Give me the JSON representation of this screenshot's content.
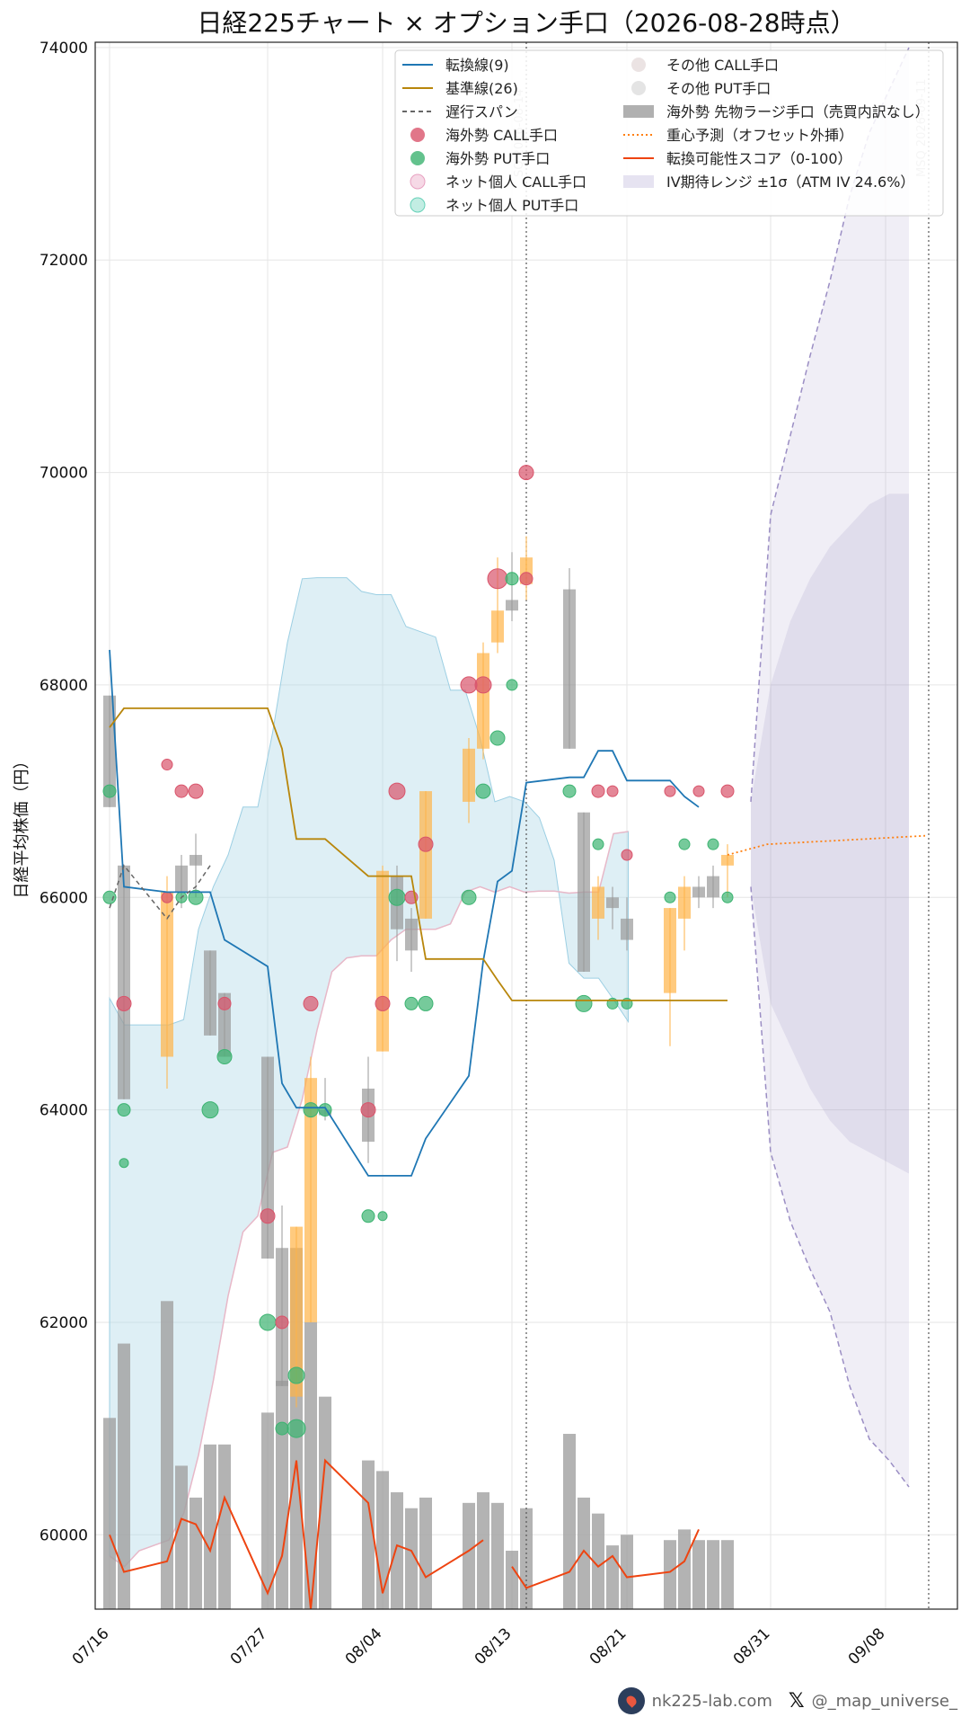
{
  "chart_data": {
    "type": "line",
    "title": "日経225チャート × オプション手口（2026-08-28時点）",
    "ylabel": "日経平均株価（円）",
    "ylim": [
      59300,
      74050
    ],
    "y_ticks": [
      60000,
      62000,
      64000,
      66000,
      68000,
      70000,
      72000,
      74000
    ],
    "x_ticks": [
      {
        "date": "2026-07-16",
        "label": "07/16"
      },
      {
        "date": "2026-07-27",
        "label": "07/27"
      },
      {
        "date": "2026-08-04",
        "label": "08/04"
      },
      {
        "date": "2026-08-13",
        "label": "08/13"
      },
      {
        "date": "2026-08-21",
        "label": "08/21"
      },
      {
        "date": "2026-08-31",
        "label": "08/31"
      },
      {
        "date": "2026-09-08",
        "label": "09/08"
      }
    ],
    "x_range": [
      "2026-07-15",
      "2026-09-13"
    ],
    "grid": true,
    "legend_position": "top",
    "vlines": [
      {
        "date": "2026-08-14",
        "label": "SQ 2026-08-14"
      },
      {
        "date": "2026-09-11",
        "label": "MSQ 2026-09-11"
      }
    ],
    "legend": {
      "tenkan": "転換線(9)",
      "kijun": "基準線(26)",
      "chikou": "遅行スパン",
      "foreign_call": "海外勢 CALL手口",
      "foreign_put": "海外勢 PUT手口",
      "retail_call": "ネット個人 CALL手口",
      "retail_put": "ネット個人 PUT手口",
      "other_call": "その他 CALL手口",
      "other_put": "その他 PUT手口",
      "futures": "海外勢 先物ラージ手口（売買内訳なし）",
      "center": "重心予測（オフセット外挿）",
      "score": "転換可能性スコア（0-100）",
      "iv": "IV期待レンジ ±1σ（ATM IV 24.6%）"
    },
    "colors": {
      "tenkan": "#1f77b4",
      "kijun": "#b8860b",
      "chikou": "#666666",
      "call": "#d9546b",
      "put": "#3cb371",
      "cloud": "#add8e6",
      "cloud_red": "#e8b8c8",
      "futures": "#a0a0a0",
      "candle": "#ffb347",
      "center": "#ff7f0e",
      "score": "#ee4411",
      "iv": "#9b8ec4"
    },
    "dates": [
      "2026-07-16",
      "2026-07-17",
      "2026-07-20",
      "2026-07-21",
      "2026-07-22",
      "2026-07-23",
      "2026-07-24",
      "2026-07-27",
      "2026-07-28",
      "2026-07-29",
      "2026-07-30",
      "2026-07-31",
      "2026-08-03",
      "2026-08-04",
      "2026-08-05",
      "2026-08-06",
      "2026-08-07",
      "2026-08-10",
      "2026-08-11",
      "2026-08-12",
      "2026-08-13",
      "2026-08-14",
      "2026-08-17",
      "2026-08-18",
      "2026-08-19",
      "2026-08-20",
      "2026-08-21",
      "2026-08-24",
      "2026-08-25",
      "2026-08-26",
      "2026-08-27",
      "2026-08-28"
    ],
    "candles": [
      [
        67900,
        67900,
        66850,
        66850
      ],
      [
        66300,
        66300,
        64100,
        64100
      ],
      [
        64500,
        66200,
        64200,
        66050
      ],
      [
        66050,
        66400,
        65900,
        66300
      ],
      [
        66300,
        66600,
        66000,
        66400
      ],
      [
        65500,
        65500,
        64700,
        64700
      ],
      [
        65100,
        65100,
        64500,
        64500
      ],
      [
        64500,
        64500,
        62600,
        62600
      ],
      [
        62700,
        63100,
        61400,
        61400
      ],
      [
        61300,
        62900,
        61200,
        62900
      ],
      [
        62000,
        64500,
        62000,
        64300
      ],
      [
        64000,
        64300,
        63900,
        63950
      ],
      [
        64200,
        64500,
        63500,
        63700
      ],
      [
        64550,
        66300,
        64550,
        66250
      ],
      [
        66200,
        66300,
        65400,
        65700
      ],
      [
        65500,
        65900,
        65300,
        65800
      ],
      [
        65800,
        67000,
        65800,
        67000
      ],
      [
        66900,
        67500,
        66700,
        67400
      ],
      [
        67400,
        68400,
        67300,
        68300
      ],
      [
        68400,
        69200,
        68300,
        68700
      ],
      [
        68700,
        69250,
        68600,
        68800
      ],
      [
        69200,
        69400,
        68800,
        68950
      ],
      [
        68900,
        69100,
        67400,
        67400
      ],
      [
        66800,
        66800,
        65300,
        65300
      ],
      [
        65800,
        66200,
        65600,
        66100
      ],
      [
        65900,
        66100,
        65700,
        66000
      ],
      [
        65600,
        66000,
        65500,
        65800
      ],
      [
        65900,
        65900,
        64600,
        65100
      ],
      [
        65800,
        66200,
        65500,
        66100
      ],
      [
        66100,
        66200,
        65900,
        66000
      ],
      [
        66000,
        66300,
        65900,
        66200
      ],
      [
        66300,
        66500,
        66000,
        66400
      ]
    ],
    "candle_colors": [
      "gray",
      "gray",
      "orange",
      "gray",
      "gray",
      "gray",
      "gray",
      "gray",
      "gray",
      "orange",
      "orange",
      "gray",
      "gray",
      "orange",
      "gray",
      "gray",
      "orange",
      "orange",
      "orange",
      "orange",
      "gray",
      "orange",
      "gray",
      "gray",
      "orange",
      "gray",
      "gray",
      "orange",
      "orange",
      "gray",
      "gray",
      "orange"
    ],
    "tenkan": [
      68330,
      66100,
      66050,
      66050,
      66050,
      66050,
      65600,
      65350,
      64250,
      64020,
      64020,
      64020,
      63380,
      63380,
      63380,
      63380,
      63730,
      64320,
      65400,
      66150,
      66250,
      67080,
      67130,
      67130,
      67380,
      67380,
      67100,
      67100,
      66950,
      66850
    ],
    "kijun": [
      67600,
      67780,
      67780,
      67780,
      67780,
      67780,
      67780,
      67780,
      67400,
      66550,
      66550,
      66550,
      66200,
      66200,
      66200,
      66200,
      65420,
      65420,
      65420,
      65220,
      65030,
      65030,
      65030,
      65030,
      65030,
      65030,
      65030,
      65030,
      65030,
      65030,
      65030,
      65030
    ],
    "chikou": [
      65900,
      66300,
      65800,
      66000,
      66100,
      66300
    ],
    "cloud_upper": [
      65050,
      64800,
      64800,
      64800,
      64800,
      64850,
      65700,
      66100,
      66400,
      66850,
      66850,
      67550,
      68400,
      69000,
      69010,
      69010,
      69010,
      68880,
      68850,
      68850,
      68550,
      68500,
      68450,
      67950,
      67950,
      67500,
      66900,
      66950,
      66900,
      66750,
      66350,
      65380,
      65240,
      65240,
      65040,
      64830
    ],
    "cloud_lower": [
      59800,
      59700,
      59850,
      59900,
      59950,
      60200,
      60750,
      61450,
      62250,
      62850,
      63000,
      63600,
      63650,
      64100,
      64750,
      65300,
      65430,
      65450,
      65450,
      65600,
      65700,
      65700,
      65700,
      65750,
      66050,
      66100,
      66050,
      66100,
      66050,
      66060,
      66060,
      66040,
      66050,
      66050,
      66600,
      66620
    ],
    "futures_volume": [
      61100,
      61800,
      62200,
      60650,
      60350,
      60850,
      60850,
      61150,
      61450,
      62700,
      62000,
      61300,
      60700,
      60600,
      60400,
      60250,
      60350,
      60300,
      60400,
      60300,
      59850,
      60250,
      60950,
      60350,
      60200,
      59900,
      60000,
      59950,
      60050,
      59950,
      59950,
      59950
    ],
    "score": [
      60000,
      59650,
      59750,
      60150,
      60100,
      59850,
      60350,
      59450,
      59800,
      60700,
      59300,
      60700,
      60300,
      59450,
      59900,
      59850,
      59600,
      59850,
      59950,
      null,
      59700,
      59500,
      59650,
      59850,
      59700,
      59800,
      59600,
      59650,
      59750,
      60050
    ],
    "iv_upper": [
      66900,
      69600,
      70350,
      71100,
      71800,
      72600,
      73200,
      73600,
      74000
    ],
    "iv_lower": [
      66100,
      63600,
      62950,
      62500,
      62100,
      61400,
      60900,
      60700,
      60450
    ],
    "iv_inner_upper": [
      66900,
      68000,
      68600,
      69000,
      69300,
      69500,
      69700,
      69800,
      69800
    ],
    "iv_inner_lower": [
      66100,
      65000,
      64600,
      64200,
      63900,
      63700,
      63600,
      63500,
      63400
    ],
    "center_forecast": [
      66400,
      66500,
      66520,
      66540,
      66560,
      66580
    ],
    "flows": [
      {
        "date": "2026-07-16",
        "strike": 67000,
        "side": "put",
        "size": 7
      },
      {
        "date": "2026-07-16",
        "strike": 66000,
        "side": "put",
        "size": 7
      },
      {
        "date": "2026-07-17",
        "strike": 65000,
        "side": "call",
        "size": 8
      },
      {
        "date": "2026-07-17",
        "strike": 64000,
        "side": "put",
        "size": 7
      },
      {
        "date": "2026-07-17",
        "strike": 63500,
        "side": "put",
        "size": 5
      },
      {
        "date": "2026-07-20",
        "strike": 67250,
        "side": "call",
        "size": 6
      },
      {
        "date": "2026-07-20",
        "strike": 66000,
        "side": "call",
        "size": 6
      },
      {
        "date": "2026-07-21",
        "strike": 67000,
        "side": "call",
        "size": 7
      },
      {
        "date": "2026-07-21",
        "strike": 66000,
        "side": "put",
        "size": 6
      },
      {
        "date": "2026-07-22",
        "strike": 67000,
        "side": "call",
        "size": 8
      },
      {
        "date": "2026-07-22",
        "strike": 66000,
        "side": "put",
        "size": 8
      },
      {
        "date": "2026-07-23",
        "strike": 64000,
        "side": "put",
        "size": 9
      },
      {
        "date": "2026-07-24",
        "strike": 65000,
        "side": "call",
        "size": 7
      },
      {
        "date": "2026-07-24",
        "strike": 64500,
        "side": "put",
        "size": 8
      },
      {
        "date": "2026-07-27",
        "strike": 63000,
        "side": "call",
        "size": 8
      },
      {
        "date": "2026-07-27",
        "strike": 62000,
        "side": "put",
        "size": 9
      },
      {
        "date": "2026-07-28",
        "strike": 62000,
        "side": "call",
        "size": 7
      },
      {
        "date": "2026-07-28",
        "strike": 61000,
        "side": "put",
        "size": 7
      },
      {
        "date": "2026-07-29",
        "strike": 61500,
        "side": "put",
        "size": 9
      },
      {
        "date": "2026-07-29",
        "strike": 61000,
        "side": "put",
        "size": 10
      },
      {
        "date": "2026-07-30",
        "strike": 65000,
        "side": "call",
        "size": 8
      },
      {
        "date": "2026-07-30",
        "strike": 64000,
        "side": "put",
        "size": 8
      },
      {
        "date": "2026-07-31",
        "strike": 64000,
        "side": "put",
        "size": 7
      },
      {
        "date": "2026-08-03",
        "strike": 63000,
        "side": "put",
        "size": 7
      },
      {
        "date": "2026-08-03",
        "strike": 64000,
        "side": "call",
        "size": 8
      },
      {
        "date": "2026-08-04",
        "strike": 65000,
        "side": "call",
        "size": 8
      },
      {
        "date": "2026-08-04",
        "strike": 63000,
        "side": "put",
        "size": 5
      },
      {
        "date": "2026-08-05",
        "strike": 67000,
        "side": "call",
        "size": 9
      },
      {
        "date": "2026-08-05",
        "strike": 66000,
        "side": "put",
        "size": 9
      },
      {
        "date": "2026-08-06",
        "strike": 66000,
        "side": "call",
        "size": 7
      },
      {
        "date": "2026-08-06",
        "strike": 65000,
        "side": "put",
        "size": 7
      },
      {
        "date": "2026-08-07",
        "strike": 66500,
        "side": "call",
        "size": 8
      },
      {
        "date": "2026-08-07",
        "strike": 65000,
        "side": "put",
        "size": 8
      },
      {
        "date": "2026-08-10",
        "strike": 68000,
        "side": "call",
        "size": 9
      },
      {
        "date": "2026-08-10",
        "strike": 66000,
        "side": "put",
        "size": 8
      },
      {
        "date": "2026-08-11",
        "strike": 68000,
        "side": "call",
        "size": 9
      },
      {
        "date": "2026-08-11",
        "strike": 67000,
        "side": "put",
        "size": 8
      },
      {
        "date": "2026-08-12",
        "strike": 69000,
        "side": "call",
        "size": 11
      },
      {
        "date": "2026-08-12",
        "strike": 67500,
        "side": "put",
        "size": 8
      },
      {
        "date": "2026-08-13",
        "strike": 69000,
        "side": "put",
        "size": 7
      },
      {
        "date": "2026-08-13",
        "strike": 68000,
        "side": "put",
        "size": 6
      },
      {
        "date": "2026-08-14",
        "strike": 70000,
        "side": "call",
        "size": 8
      },
      {
        "date": "2026-08-14",
        "strike": 69000,
        "side": "call",
        "size": 7
      },
      {
        "date": "2026-08-17",
        "strike": 67000,
        "side": "put",
        "size": 7
      },
      {
        "date": "2026-08-18",
        "strike": 65000,
        "side": "put",
        "size": 9
      },
      {
        "date": "2026-08-19",
        "strike": 67000,
        "side": "call",
        "size": 7
      },
      {
        "date": "2026-08-19",
        "strike": 66500,
        "side": "put",
        "size": 6
      },
      {
        "date": "2026-08-20",
        "strike": 67000,
        "side": "call",
        "size": 6
      },
      {
        "date": "2026-08-20",
        "strike": 65000,
        "side": "put",
        "size": 6
      },
      {
        "date": "2026-08-21",
        "strike": 66400,
        "side": "call",
        "size": 6
      },
      {
        "date": "2026-08-21",
        "strike": 65000,
        "side": "put",
        "size": 6
      },
      {
        "date": "2026-08-24",
        "strike": 67000,
        "side": "call",
        "size": 6
      },
      {
        "date": "2026-08-24",
        "strike": 66000,
        "side": "put",
        "size": 6
      },
      {
        "date": "2026-08-25",
        "strike": 66500,
        "side": "put",
        "size": 6
      },
      {
        "date": "2026-08-26",
        "strike": 67000,
        "side": "call",
        "size": 6
      },
      {
        "date": "2026-08-27",
        "strike": 66500,
        "side": "put",
        "size": 6
      },
      {
        "date": "2026-08-28",
        "strike": 67000,
        "side": "call",
        "size": 7
      },
      {
        "date": "2026-08-28",
        "strike": 66000,
        "side": "put",
        "size": 6
      }
    ]
  },
  "footer": {
    "site": "nk225-lab.com",
    "handle": "@_map_universe_"
  }
}
